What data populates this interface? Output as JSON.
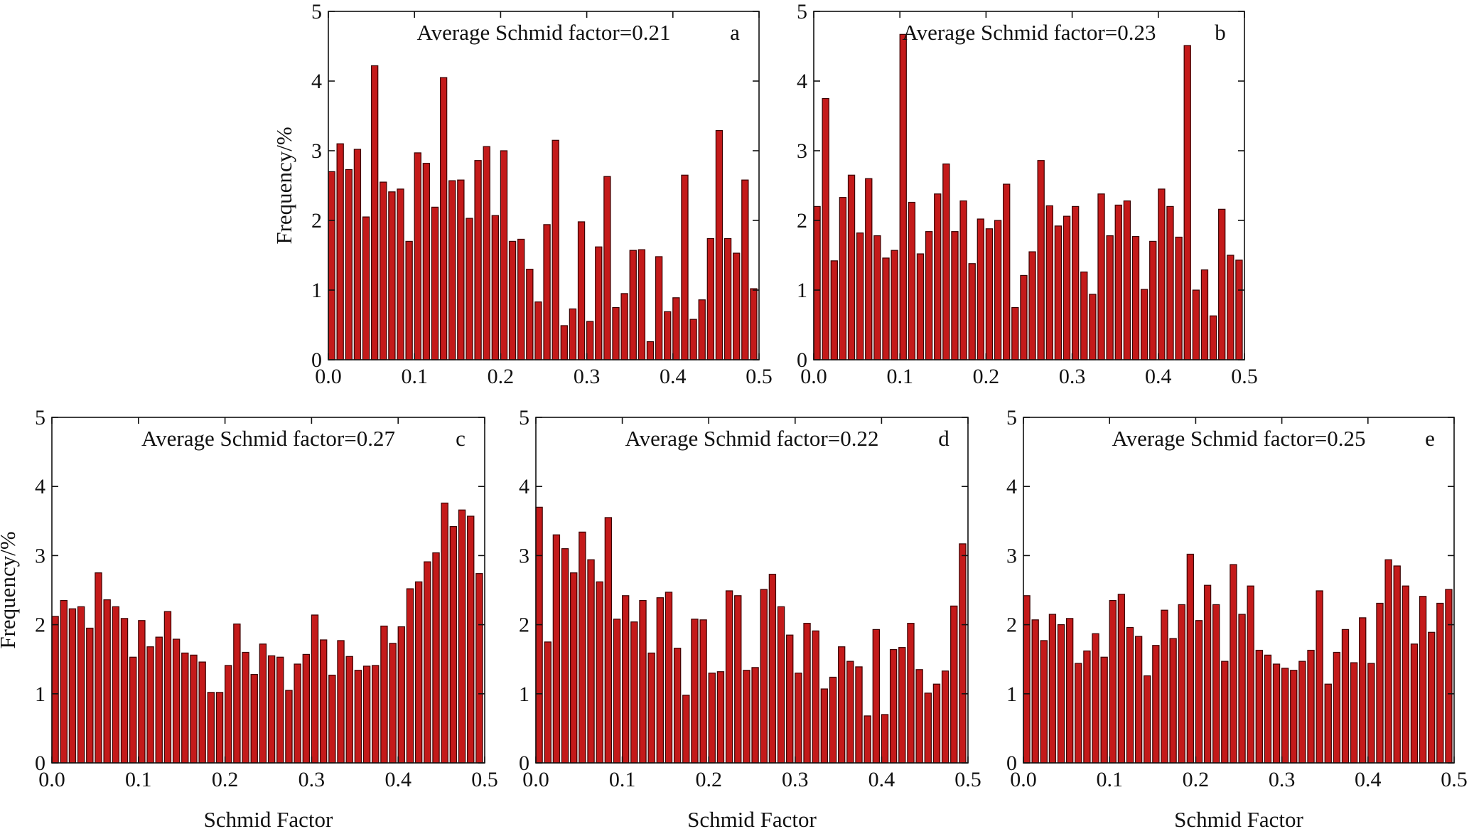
{
  "chart_data": [
    {
      "panel": "a",
      "type": "bar",
      "annotation": "Average Schmid factor=0.21",
      "xlabel": "",
      "ylabel": "Frequency/%",
      "xlim": [
        0.0,
        0.5
      ],
      "ylim": [
        0,
        5
      ],
      "xticks": [
        "0.0",
        "0.1",
        "0.2",
        "0.3",
        "0.4",
        "0.5"
      ],
      "yticks": [
        "0",
        "1",
        "2",
        "3",
        "4",
        "5"
      ],
      "bar_width": 0.01,
      "bar_color": "#c41a1a",
      "x": [
        0.0,
        0.01,
        0.02,
        0.03,
        0.04,
        0.05,
        0.06,
        0.07,
        0.08,
        0.09,
        0.1,
        0.11,
        0.12,
        0.13,
        0.14,
        0.15,
        0.16,
        0.17,
        0.18,
        0.19,
        0.2,
        0.21,
        0.22,
        0.23,
        0.24,
        0.25,
        0.26,
        0.27,
        0.28,
        0.29,
        0.3,
        0.31,
        0.32,
        0.33,
        0.34,
        0.35,
        0.36,
        0.37,
        0.38,
        0.39,
        0.4,
        0.41,
        0.42,
        0.43,
        0.44,
        0.45,
        0.46,
        0.47,
        0.48,
        0.49
      ],
      "values": [
        2.7,
        3.1,
        2.73,
        3.02,
        2.05,
        4.22,
        2.55,
        2.41,
        2.45,
        1.7,
        2.97,
        2.82,
        2.19,
        4.05,
        2.57,
        2.58,
        2.03,
        2.86,
        3.06,
        2.07,
        3.0,
        1.7,
        1.73,
        1.3,
        0.83,
        1.94,
        3.15,
        0.49,
        0.73,
        1.98,
        0.55,
        1.62,
        2.63,
        0.75,
        0.95,
        1.57,
        1.58,
        0.26,
        1.48,
        0.69,
        0.89,
        2.65,
        0.58,
        0.86,
        1.74,
        3.29,
        1.74,
        1.53,
        2.58,
        1.02
      ]
    },
    {
      "panel": "b",
      "type": "bar",
      "annotation": "Average Schmid factor=0.23",
      "xlabel": "",
      "ylabel": "",
      "xlim": [
        0.0,
        0.5
      ],
      "ylim": [
        0,
        5
      ],
      "xticks": [
        "0.0",
        "0.1",
        "0.2",
        "0.3",
        "0.4",
        "0.5"
      ],
      "yticks": [
        "0",
        "1",
        "2",
        "3",
        "4",
        "5"
      ],
      "bar_width": 0.01,
      "bar_color": "#c41a1a",
      "x": [
        0.0,
        0.01,
        0.02,
        0.03,
        0.04,
        0.05,
        0.06,
        0.07,
        0.08,
        0.09,
        0.1,
        0.11,
        0.12,
        0.13,
        0.14,
        0.15,
        0.16,
        0.17,
        0.18,
        0.19,
        0.2,
        0.21,
        0.22,
        0.23,
        0.24,
        0.25,
        0.26,
        0.27,
        0.28,
        0.29,
        0.3,
        0.31,
        0.32,
        0.33,
        0.34,
        0.35,
        0.36,
        0.37,
        0.38,
        0.39,
        0.4,
        0.41,
        0.42,
        0.43,
        0.44,
        0.45,
        0.46,
        0.47,
        0.48,
        0.49
      ],
      "values": [
        2.2,
        3.75,
        1.42,
        2.33,
        2.65,
        1.82,
        2.6,
        1.78,
        1.46,
        1.57,
        4.67,
        2.26,
        1.52,
        1.84,
        2.38,
        2.81,
        1.84,
        2.28,
        1.38,
        2.02,
        1.88,
        2.0,
        2.52,
        0.75,
        1.21,
        1.55,
        2.86,
        2.21,
        1.92,
        2.06,
        2.2,
        1.26,
        0.94,
        2.38,
        1.78,
        2.22,
        2.28,
        1.77,
        1.01,
        1.7,
        2.45,
        2.2,
        1.76,
        4.51,
        1.0,
        1.29,
        0.63,
        2.16,
        1.5,
        1.43
      ]
    },
    {
      "panel": "c",
      "type": "bar",
      "annotation": "Average Schmid factor=0.27",
      "xlabel": "Schmid Factor",
      "ylabel": "Frequency/%",
      "xlim": [
        0.0,
        0.5
      ],
      "ylim": [
        0,
        5
      ],
      "xticks": [
        "0.0",
        "0.1",
        "0.2",
        "0.3",
        "0.4",
        "0.5"
      ],
      "yticks": [
        "0",
        "1",
        "2",
        "3",
        "4",
        "5"
      ],
      "bar_width": 0.01,
      "bar_color": "#c41a1a",
      "x": [
        0.0,
        0.01,
        0.02,
        0.03,
        0.04,
        0.05,
        0.06,
        0.07,
        0.08,
        0.09,
        0.1,
        0.11,
        0.12,
        0.13,
        0.14,
        0.15,
        0.16,
        0.17,
        0.18,
        0.19,
        0.2,
        0.21,
        0.22,
        0.23,
        0.24,
        0.25,
        0.26,
        0.27,
        0.28,
        0.29,
        0.3,
        0.31,
        0.32,
        0.33,
        0.34,
        0.35,
        0.36,
        0.37,
        0.38,
        0.39,
        0.4,
        0.41,
        0.42,
        0.43,
        0.44,
        0.45,
        0.46,
        0.47,
        0.48,
        0.49
      ],
      "values": [
        2.12,
        2.35,
        2.23,
        2.26,
        1.95,
        2.75,
        2.36,
        2.26,
        2.09,
        1.53,
        2.06,
        1.68,
        1.82,
        2.19,
        1.79,
        1.59,
        1.56,
        1.46,
        1.02,
        1.02,
        1.41,
        2.01,
        1.6,
        1.28,
        1.72,
        1.55,
        1.53,
        1.05,
        1.43,
        1.57,
        2.14,
        1.78,
        1.27,
        1.77,
        1.54,
        1.34,
        1.4,
        1.41,
        1.98,
        1.73,
        1.97,
        2.52,
        2.62,
        2.91,
        3.04,
        3.76,
        3.42,
        3.66,
        3.57,
        2.74
      ]
    },
    {
      "panel": "d",
      "type": "bar",
      "annotation": "Average Schmid factor=0.22",
      "xlabel": "Schmid Factor",
      "ylabel": "",
      "xlim": [
        0.0,
        0.5
      ],
      "ylim": [
        0,
        5
      ],
      "xticks": [
        "0.0",
        "0.1",
        "0.2",
        "0.3",
        "0.4",
        "0.5"
      ],
      "yticks": [
        "0",
        "1",
        "2",
        "3",
        "4",
        "5"
      ],
      "bar_width": 0.01,
      "bar_color": "#c41a1a",
      "x": [
        0.0,
        0.01,
        0.02,
        0.03,
        0.04,
        0.05,
        0.06,
        0.07,
        0.08,
        0.09,
        0.1,
        0.11,
        0.12,
        0.13,
        0.14,
        0.15,
        0.16,
        0.17,
        0.18,
        0.19,
        0.2,
        0.21,
        0.22,
        0.23,
        0.24,
        0.25,
        0.26,
        0.27,
        0.28,
        0.29,
        0.3,
        0.31,
        0.32,
        0.33,
        0.34,
        0.35,
        0.36,
        0.37,
        0.38,
        0.39,
        0.4,
        0.41,
        0.42,
        0.43,
        0.44,
        0.45,
        0.46,
        0.47,
        0.48,
        0.49
      ],
      "values": [
        3.7,
        1.75,
        3.3,
        3.1,
        2.75,
        3.34,
        2.94,
        2.62,
        3.55,
        2.08,
        2.42,
        2.04,
        2.35,
        1.59,
        2.39,
        2.47,
        1.66,
        0.98,
        2.08,
        2.07,
        1.3,
        1.32,
        2.49,
        2.42,
        1.34,
        1.38,
        2.51,
        2.73,
        2.26,
        1.85,
        1.3,
        2.02,
        1.91,
        1.07,
        1.24,
        1.68,
        1.47,
        1.39,
        0.68,
        1.93,
        0.7,
        1.64,
        1.67,
        2.02,
        1.35,
        1.01,
        1.14,
        1.33,
        2.27,
        3.17
      ]
    },
    {
      "panel": "e",
      "type": "bar",
      "annotation": "Average Schmid factor=0.25",
      "xlabel": "Schmid Factor",
      "ylabel": "",
      "xlim": [
        0.0,
        0.5
      ],
      "ylim": [
        0,
        5
      ],
      "xticks": [
        "0.0",
        "0.1",
        "0.2",
        "0.3",
        "0.4",
        "0.5"
      ],
      "yticks": [
        "0",
        "1",
        "2",
        "3",
        "4",
        "5"
      ],
      "bar_width": 0.01,
      "bar_color": "#c41a1a",
      "x": [
        0.0,
        0.01,
        0.02,
        0.03,
        0.04,
        0.05,
        0.06,
        0.07,
        0.08,
        0.09,
        0.1,
        0.11,
        0.12,
        0.13,
        0.14,
        0.15,
        0.16,
        0.17,
        0.18,
        0.19,
        0.2,
        0.21,
        0.22,
        0.23,
        0.24,
        0.25,
        0.26,
        0.27,
        0.28,
        0.29,
        0.3,
        0.31,
        0.32,
        0.33,
        0.34,
        0.35,
        0.36,
        0.37,
        0.38,
        0.39,
        0.4,
        0.41,
        0.42,
        0.43,
        0.44,
        0.45,
        0.46,
        0.47,
        0.48,
        0.49
      ],
      "values": [
        2.42,
        2.07,
        1.77,
        2.15,
        2.0,
        2.09,
        1.44,
        1.62,
        1.87,
        1.53,
        2.35,
        2.44,
        1.96,
        1.83,
        1.26,
        1.7,
        2.21,
        1.8,
        2.29,
        3.02,
        2.06,
        2.57,
        2.29,
        1.47,
        2.87,
        2.15,
        2.56,
        1.63,
        1.56,
        1.43,
        1.37,
        1.34,
        1.47,
        1.63,
        2.49,
        1.14,
        1.6,
        1.93,
        1.45,
        2.1,
        1.44,
        2.31,
        2.94,
        2.85,
        2.56,
        1.72,
        2.41,
        1.89,
        2.31,
        2.51
      ]
    }
  ]
}
